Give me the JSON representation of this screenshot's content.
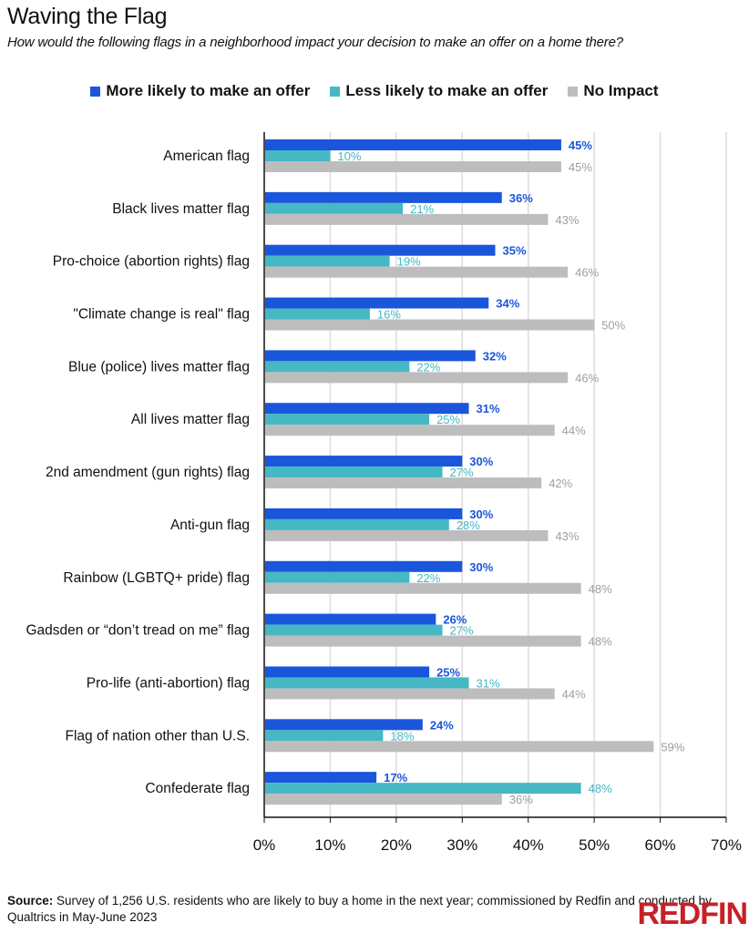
{
  "header": {
    "title": "Waving the Flag",
    "subtitle": "How would the following flags in a neighborhood impact your decision to make an offer on a home there?"
  },
  "footer": {
    "source_label": "Source:",
    "source_text": " Survey of 1,256 U.S. residents who are likely to buy a home in the next year; commissioned by Redfin and conducted by Qualtrics in May-June 2023",
    "logo": "REDFIN"
  },
  "colors": {
    "more": "#1a56db",
    "less": "#45b8c4",
    "none": "#bdbdbd",
    "more_label": "#1a56db",
    "less_label": "#45b8c4",
    "none_label": "#9e9e9e",
    "brand": "#c62127"
  },
  "chart_data": {
    "type": "bar",
    "orientation": "horizontal",
    "title": "Waving the Flag",
    "subtitle": "How would the following flags in a neighborhood impact your decision to make an offer on a home there?",
    "xlabel": "",
    "ylabel": "",
    "xlim": [
      0,
      70
    ],
    "x_ticks": [
      "0%",
      "10%",
      "20%",
      "30%",
      "40%",
      "50%",
      "60%",
      "70%"
    ],
    "grid": true,
    "legend_position": "top-center",
    "categories": [
      "American flag",
      "Black lives matter flag",
      "Pro-choice (abortion rights) flag",
      "\"Climate change is real\" flag",
      "Blue (police) lives matter flag",
      "All lives matter flag",
      "2nd amendment (gun rights) flag",
      "Anti-gun flag",
      "Rainbow (LGBTQ+ pride) flag",
      "Gadsden or “don’t tread on me” flag",
      "Pro-life (anti-abortion) flag",
      "Flag of nation other than U.S.",
      "Confederate flag"
    ],
    "series": [
      {
        "name": "More likely to make an offer",
        "key": "more",
        "values": [
          45,
          36,
          35,
          34,
          32,
          31,
          30,
          30,
          30,
          26,
          25,
          24,
          17
        ]
      },
      {
        "name": "Less likely to make an offer",
        "key": "less",
        "values": [
          10,
          21,
          19,
          16,
          22,
          25,
          27,
          28,
          22,
          27,
          31,
          18,
          48
        ]
      },
      {
        "name": "No Impact",
        "key": "none",
        "values": [
          45,
          43,
          46,
          50,
          46,
          44,
          42,
          43,
          48,
          48,
          44,
          59,
          36
        ]
      }
    ]
  }
}
